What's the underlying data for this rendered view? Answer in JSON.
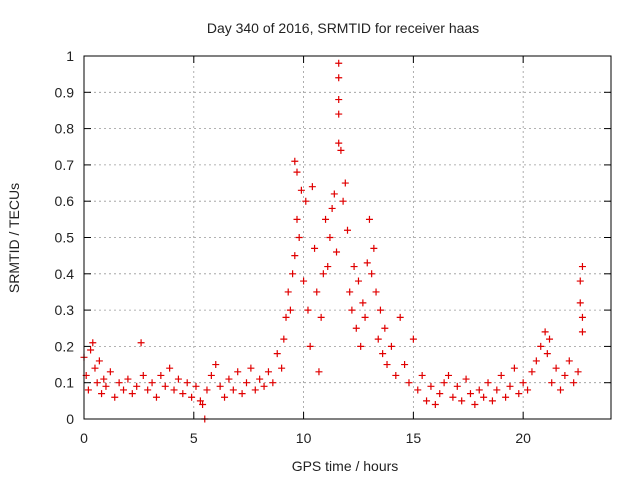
{
  "chart_data": {
    "type": "scatter",
    "title": "Day 340 of 2016, SRMTID for receiver haas",
    "xlabel": "GPS time / hours",
    "ylabel": "SRMTID / TECUs",
    "xlim": [
      0,
      24
    ],
    "ylim": [
      0,
      1
    ],
    "xticks": [
      0,
      5,
      10,
      15,
      20
    ],
    "yticks": [
      0,
      0.1,
      0.2,
      0.3,
      0.4,
      0.5,
      0.6,
      0.7,
      0.8,
      0.9,
      1
    ],
    "xtick_labels": [
      "0",
      "5",
      "10",
      "15",
      "20"
    ],
    "ytick_labels": [
      "0",
      "0.1",
      "0.2",
      "0.3",
      "0.4",
      "0.5",
      "0.6",
      "0.7",
      "0.8",
      "0.9",
      "1"
    ],
    "grid": true,
    "marker": "+",
    "color": "#e00000",
    "series": [
      {
        "name": "SRMTID",
        "points": [
          [
            0.0,
            0.17
          ],
          [
            0.1,
            0.12
          ],
          [
            0.2,
            0.08
          ],
          [
            0.3,
            0.19
          ],
          [
            0.4,
            0.21
          ],
          [
            0.5,
            0.14
          ],
          [
            0.6,
            0.1
          ],
          [
            0.7,
            0.16
          ],
          [
            0.8,
            0.07
          ],
          [
            0.9,
            0.11
          ],
          [
            1.0,
            0.09
          ],
          [
            1.2,
            0.13
          ],
          [
            1.4,
            0.06
          ],
          [
            1.6,
            0.1
          ],
          [
            1.8,
            0.08
          ],
          [
            2.0,
            0.11
          ],
          [
            2.2,
            0.07
          ],
          [
            2.4,
            0.09
          ],
          [
            2.6,
            0.21
          ],
          [
            2.7,
            0.12
          ],
          [
            2.9,
            0.08
          ],
          [
            3.1,
            0.1
          ],
          [
            3.3,
            0.06
          ],
          [
            3.5,
            0.12
          ],
          [
            3.7,
            0.09
          ],
          [
            3.9,
            0.14
          ],
          [
            4.1,
            0.08
          ],
          [
            4.3,
            0.11
          ],
          [
            4.5,
            0.07
          ],
          [
            4.7,
            0.1
          ],
          [
            4.9,
            0.06
          ],
          [
            5.1,
            0.09
          ],
          [
            5.3,
            0.05
          ],
          [
            5.4,
            0.04
          ],
          [
            5.5,
            0.0
          ],
          [
            5.6,
            0.08
          ],
          [
            5.8,
            0.12
          ],
          [
            6.0,
            0.15
          ],
          [
            6.2,
            0.09
          ],
          [
            6.4,
            0.06
          ],
          [
            6.6,
            0.11
          ],
          [
            6.8,
            0.08
          ],
          [
            7.0,
            0.13
          ],
          [
            7.2,
            0.07
          ],
          [
            7.4,
            0.1
          ],
          [
            7.6,
            0.14
          ],
          [
            7.8,
            0.08
          ],
          [
            8.0,
            0.11
          ],
          [
            8.2,
            0.09
          ],
          [
            8.4,
            0.13
          ],
          [
            8.6,
            0.1
          ],
          [
            8.8,
            0.18
          ],
          [
            9.0,
            0.14
          ],
          [
            9.1,
            0.22
          ],
          [
            9.2,
            0.28
          ],
          [
            9.3,
            0.35
          ],
          [
            9.4,
            0.3
          ],
          [
            9.5,
            0.4
          ],
          [
            9.6,
            0.45
          ],
          [
            9.6,
            0.71
          ],
          [
            9.7,
            0.68
          ],
          [
            9.7,
            0.55
          ],
          [
            9.8,
            0.5
          ],
          [
            9.9,
            0.63
          ],
          [
            10.0,
            0.38
          ],
          [
            10.1,
            0.6
          ],
          [
            10.2,
            0.3
          ],
          [
            10.3,
            0.2
          ],
          [
            10.4,
            0.64
          ],
          [
            10.5,
            0.47
          ],
          [
            10.6,
            0.35
          ],
          [
            10.7,
            0.13
          ],
          [
            10.8,
            0.28
          ],
          [
            10.9,
            0.4
          ],
          [
            11.0,
            0.55
          ],
          [
            11.1,
            0.42
          ],
          [
            11.2,
            0.5
          ],
          [
            11.3,
            0.58
          ],
          [
            11.4,
            0.62
          ],
          [
            11.5,
            0.46
          ],
          [
            11.6,
            0.84
          ],
          [
            11.6,
            0.98
          ],
          [
            11.6,
            0.94
          ],
          [
            11.6,
            0.88
          ],
          [
            11.6,
            0.76
          ],
          [
            11.7,
            0.74
          ],
          [
            11.8,
            0.6
          ],
          [
            11.9,
            0.65
          ],
          [
            12.0,
            0.52
          ],
          [
            12.1,
            0.35
          ],
          [
            12.2,
            0.3
          ],
          [
            12.3,
            0.42
          ],
          [
            12.4,
            0.25
          ],
          [
            12.5,
            0.38
          ],
          [
            12.6,
            0.2
          ],
          [
            12.7,
            0.32
          ],
          [
            12.8,
            0.28
          ],
          [
            12.9,
            0.43
          ],
          [
            13.0,
            0.55
          ],
          [
            13.1,
            0.4
          ],
          [
            13.2,
            0.47
          ],
          [
            13.3,
            0.35
          ],
          [
            13.4,
            0.22
          ],
          [
            13.5,
            0.3
          ],
          [
            13.6,
            0.18
          ],
          [
            13.7,
            0.25
          ],
          [
            13.8,
            0.15
          ],
          [
            14.0,
            0.2
          ],
          [
            14.2,
            0.12
          ],
          [
            14.4,
            0.28
          ],
          [
            14.6,
            0.15
          ],
          [
            14.8,
            0.1
          ],
          [
            15.0,
            0.22
          ],
          [
            15.2,
            0.08
          ],
          [
            15.4,
            0.12
          ],
          [
            15.6,
            0.05
          ],
          [
            15.8,
            0.09
          ],
          [
            16.0,
            0.04
          ],
          [
            16.2,
            0.07
          ],
          [
            16.4,
            0.1
          ],
          [
            16.6,
            0.12
          ],
          [
            16.8,
            0.06
          ],
          [
            17.0,
            0.09
          ],
          [
            17.2,
            0.05
          ],
          [
            17.4,
            0.11
          ],
          [
            17.6,
            0.07
          ],
          [
            17.8,
            0.04
          ],
          [
            18.0,
            0.08
          ],
          [
            18.2,
            0.06
          ],
          [
            18.4,
            0.1
          ],
          [
            18.6,
            0.05
          ],
          [
            18.8,
            0.08
          ],
          [
            19.0,
            0.12
          ],
          [
            19.2,
            0.06
          ],
          [
            19.4,
            0.09
          ],
          [
            19.6,
            0.14
          ],
          [
            19.8,
            0.07
          ],
          [
            20.0,
            0.1
          ],
          [
            20.2,
            0.08
          ],
          [
            20.4,
            0.13
          ],
          [
            20.6,
            0.16
          ],
          [
            20.8,
            0.2
          ],
          [
            21.0,
            0.24
          ],
          [
            21.1,
            0.18
          ],
          [
            21.2,
            0.22
          ],
          [
            21.3,
            0.1
          ],
          [
            21.5,
            0.14
          ],
          [
            21.7,
            0.08
          ],
          [
            21.9,
            0.12
          ],
          [
            22.1,
            0.16
          ],
          [
            22.3,
            0.1
          ],
          [
            22.5,
            0.13
          ],
          [
            22.6,
            0.32
          ],
          [
            22.6,
            0.38
          ],
          [
            22.7,
            0.42
          ],
          [
            22.7,
            0.28
          ],
          [
            22.7,
            0.24
          ]
        ]
      }
    ]
  }
}
